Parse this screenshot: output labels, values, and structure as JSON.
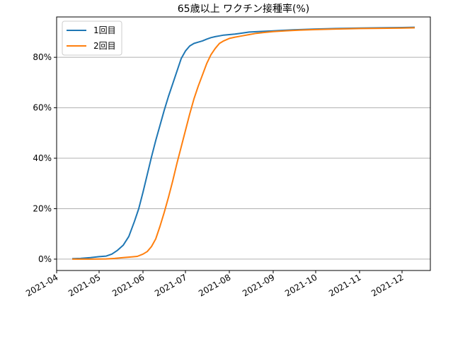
{
  "chart_data": {
    "type": "line",
    "title": "65歳以上 ワクチン接種率(%)",
    "xlabel": "",
    "ylabel": "",
    "x_ticks": [
      "2021-04",
      "2021-05",
      "2021-06",
      "2021-07",
      "2021-08",
      "2021-09",
      "2021-10",
      "2021-11",
      "2021-12"
    ],
    "y_ticks": [
      "0%",
      "20%",
      "40%",
      "60%",
      "80%"
    ],
    "y_tick_values": [
      0,
      20,
      40,
      60,
      80
    ],
    "xlim": [
      "2021-04-01",
      "2021-12-21"
    ],
    "ylim": [
      -4.5,
      96
    ],
    "grid": "horizontal",
    "legend_position": "top-left",
    "colors": {
      "series_1": "#1f77b4",
      "series_2": "#ff7f0e",
      "grid": "#b0b0b0"
    },
    "series": [
      {
        "name": "1回目",
        "x": [
          "2021-04-12",
          "2021-04-18",
          "2021-04-25",
          "2021-05-01",
          "2021-05-06",
          "2021-05-10",
          "2021-05-14",
          "2021-05-18",
          "2021-05-22",
          "2021-05-26",
          "2021-05-29",
          "2021-06-01",
          "2021-06-04",
          "2021-06-07",
          "2021-06-10",
          "2021-06-13",
          "2021-06-16",
          "2021-06-19",
          "2021-06-22",
          "2021-06-25",
          "2021-06-28",
          "2021-07-01",
          "2021-07-04",
          "2021-07-07",
          "2021-07-10",
          "2021-07-13",
          "2021-07-16",
          "2021-07-19",
          "2021-07-22",
          "2021-07-25",
          "2021-07-28",
          "2021-08-01",
          "2021-08-05",
          "2021-08-10",
          "2021-08-15",
          "2021-08-25",
          "2021-09-05",
          "2021-09-15",
          "2021-10-01",
          "2021-10-15",
          "2021-11-01",
          "2021-11-15",
          "2021-12-01",
          "2021-12-10"
        ],
        "values": [
          0.2,
          0.3,
          0.6,
          1.0,
          1.2,
          2.0,
          3.5,
          5.5,
          9.0,
          15.0,
          20.0,
          26.5,
          33.5,
          40.5,
          47.0,
          53.0,
          59.0,
          64.5,
          69.5,
          74.5,
          79.5,
          82.5,
          84.5,
          85.5,
          86.0,
          86.5,
          87.2,
          87.8,
          88.2,
          88.5,
          88.8,
          89.0,
          89.2,
          89.6,
          90.0,
          90.3,
          90.6,
          90.9,
          91.2,
          91.4,
          91.6,
          91.7,
          91.8,
          91.9
        ]
      },
      {
        "name": "2回目",
        "x": [
          "2021-04-12",
          "2021-04-25",
          "2021-05-06",
          "2021-05-12",
          "2021-05-18",
          "2021-05-24",
          "2021-05-28",
          "2021-06-01",
          "2021-06-04",
          "2021-06-07",
          "2021-06-10",
          "2021-06-13",
          "2021-06-16",
          "2021-06-19",
          "2021-06-22",
          "2021-06-25",
          "2021-06-28",
          "2021-07-01",
          "2021-07-04",
          "2021-07-07",
          "2021-07-10",
          "2021-07-13",
          "2021-07-16",
          "2021-07-19",
          "2021-07-22",
          "2021-07-25",
          "2021-07-28",
          "2021-08-01",
          "2021-08-05",
          "2021-08-10",
          "2021-08-15",
          "2021-08-20",
          "2021-08-25",
          "2021-09-01",
          "2021-09-10",
          "2021-09-20",
          "2021-10-01",
          "2021-10-15",
          "2021-11-01",
          "2021-11-15",
          "2021-12-01",
          "2021-12-10"
        ],
        "values": [
          0.0,
          0.0,
          0.1,
          0.3,
          0.6,
          0.9,
          1.1,
          2.0,
          3.0,
          5.0,
          8.0,
          13.0,
          18.5,
          24.5,
          31.0,
          38.0,
          44.5,
          51.0,
          57.5,
          63.5,
          68.5,
          73.0,
          77.5,
          81.0,
          83.5,
          85.5,
          86.5,
          87.5,
          88.0,
          88.5,
          89.0,
          89.5,
          89.8,
          90.2,
          90.5,
          90.8,
          91.0,
          91.2,
          91.4,
          91.5,
          91.6,
          91.7
        ]
      }
    ]
  }
}
